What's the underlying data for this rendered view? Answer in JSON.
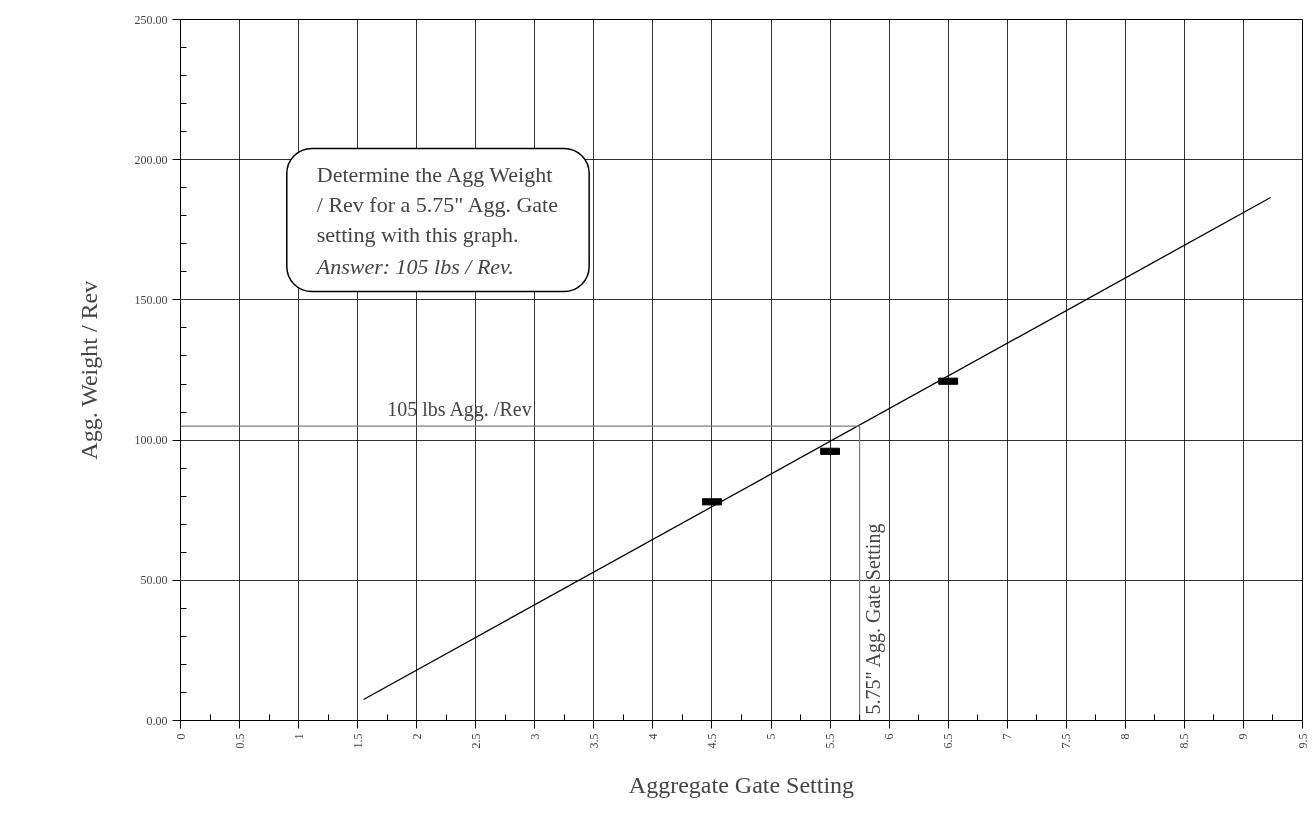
{
  "chart_data": {
    "type": "scatter",
    "xlabel": "Aggregate Gate Setting",
    "ylabel": "Agg. Weight / Rev",
    "series": [
      {
        "type": "scatter",
        "color": "#000000",
        "x": [
          4.5,
          5.5,
          6.5
        ],
        "values": [
          78,
          96,
          121
        ],
        "marker": "square"
      },
      {
        "type": "line",
        "color": "#000000",
        "x": [
          1.55,
          9.23
        ],
        "values": [
          7.5,
          186.5
        ]
      },
      {
        "type": "line",
        "color": "#808080",
        "x": [
          0,
          5.75,
          5.75
        ],
        "values": [
          105,
          105,
          0
        ]
      }
    ],
    "annotations": [
      "Determine the Agg Weight\n/ Rev for a 5.75\" Agg. Gate\nsetting with this graph.",
      "Answer: 105 lbs / Rev.",
      {
        "text": "105 lbs Agg. /Rev",
        "x": 1.75,
        "y": 105
      },
      {
        "text": "5.75\" Agg. Gate Setting",
        "x": 5.75,
        "y": 0
      }
    ],
    "xlim": [
      0,
      9.5
    ],
    "ylim": [
      0,
      250
    ],
    "xticks": [
      0,
      0.5,
      1,
      1.5,
      2,
      2.5,
      3,
      3.5,
      4,
      4.5,
      5,
      5.5,
      6,
      6.5,
      7,
      7.5,
      8,
      8.5,
      9,
      9.5
    ],
    "yticks": [
      {
        "value": 0,
        "label": "0.00"
      },
      {
        "value": 50,
        "label": "50.00"
      },
      {
        "value": 100,
        "label": "100.00"
      },
      {
        "value": 150,
        "label": "150.00"
      },
      {
        "value": 200,
        "label": "200.00"
      },
      {
        "value": 250,
        "label": "250.00"
      }
    ],
    "grid": true
  }
}
